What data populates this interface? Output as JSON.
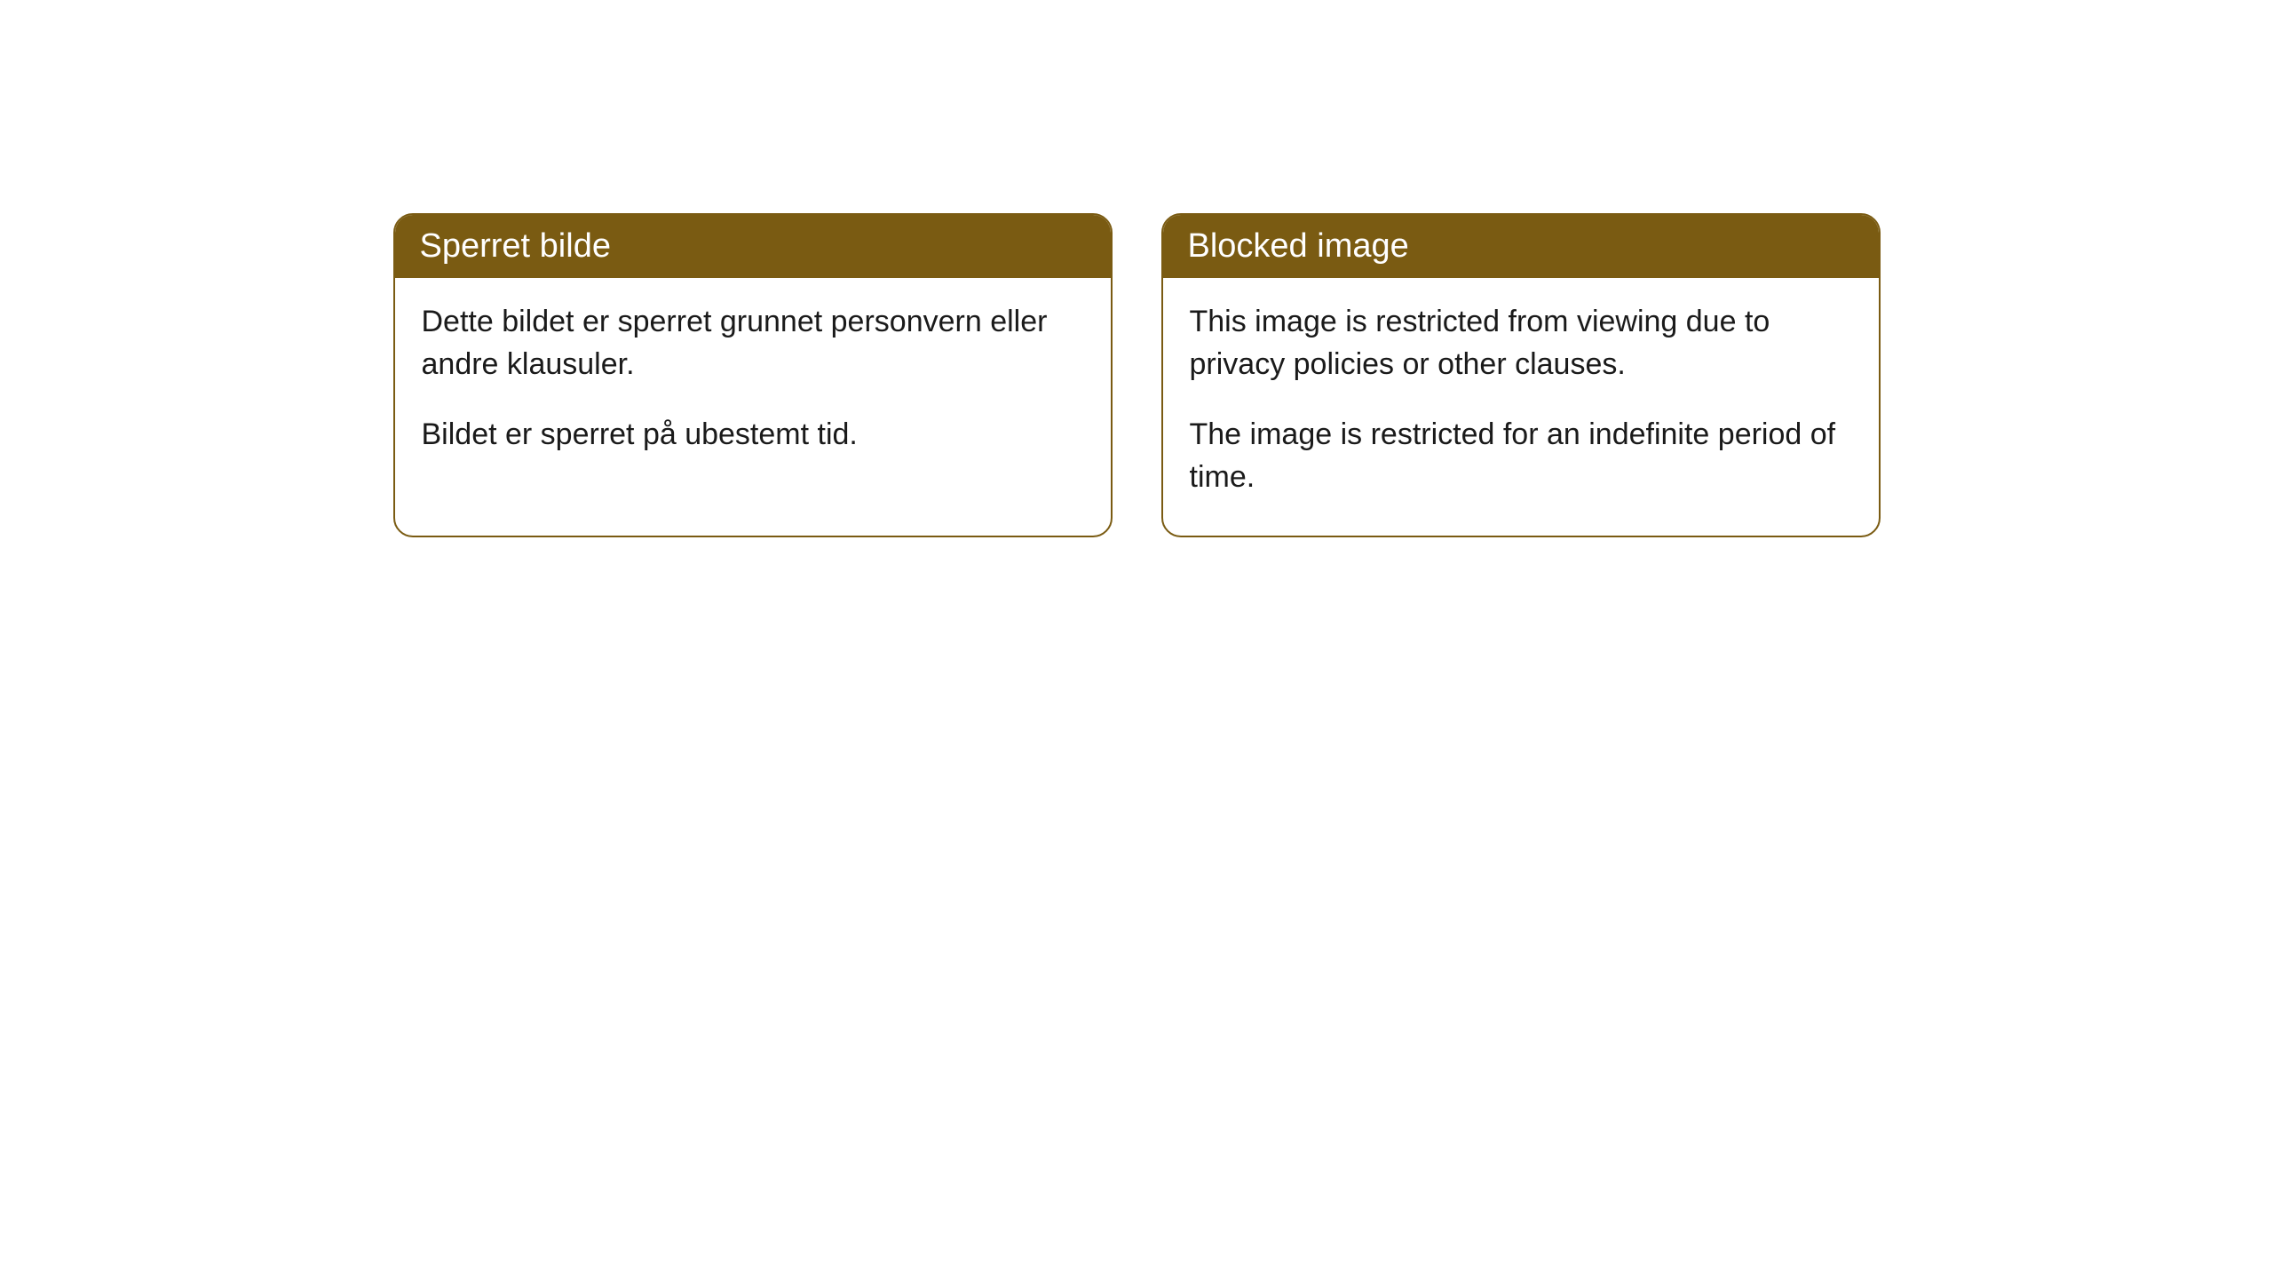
{
  "cards": [
    {
      "title": "Sperret bilde",
      "paragraph1": "Dette bildet er sperret grunnet personvern eller andre klausuler.",
      "paragraph2": "Bildet er sperret på ubestemt tid."
    },
    {
      "title": "Blocked image",
      "paragraph1": "This image is restricted from viewing due to privacy policies or other clauses.",
      "paragraph2": "The image is restricted for an indefinite period of time."
    }
  ],
  "style": {
    "header_background": "#7a5b12",
    "header_text_color": "#ffffff",
    "border_color": "#7a5b12",
    "body_text_color": "#1a1a1a",
    "card_background": "#ffffff",
    "page_background": "#ffffff",
    "border_radius": 22,
    "title_fontsize": 38,
    "body_fontsize": 34
  }
}
